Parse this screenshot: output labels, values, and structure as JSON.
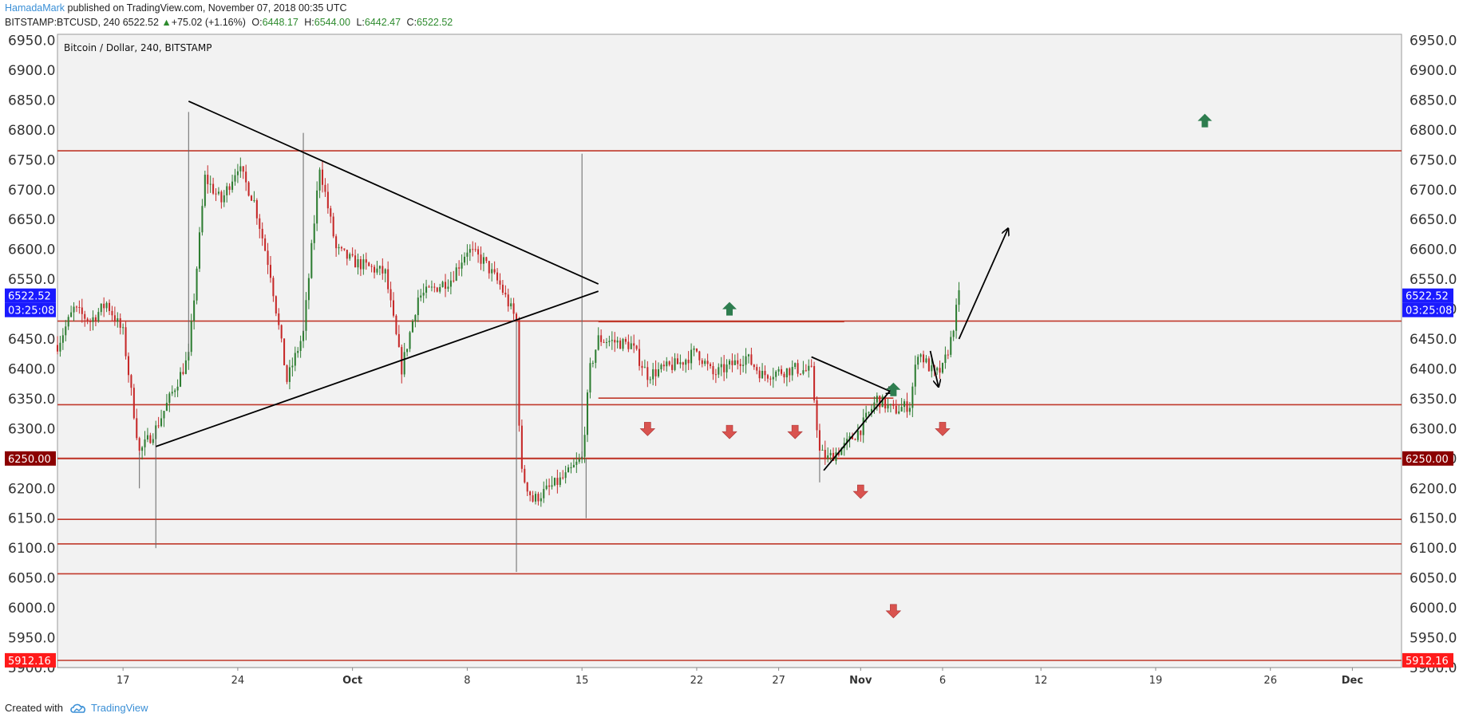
{
  "header": {
    "author": "HamadaMark",
    "published": " published on TradingView.com, November 07, 2018 00:35 UTC",
    "symbol": "BITSTAMP:BTCUSD, 240",
    "last": "6522.52",
    "change_arrow": "▲",
    "change": "+75.02 (+1.16%)",
    "o_label": "O:",
    "o_val": "6448.17",
    "h_label": "H:",
    "h_val": "6544.00",
    "l_label": "L:",
    "l_val": "6442.47",
    "c_label": "C:",
    "c_val": "6522.52"
  },
  "footer": {
    "created_with": "Created with",
    "brand": "TradingView",
    "brand_icon": "tradingview-cloud-icon"
  },
  "colors": {
    "bull": "#2e7d32",
    "bear": "#c62828",
    "level_line": "#c0392b",
    "pane_bg": "#f2f2f2",
    "blue_tag": "#1a1aff",
    "dark_red_tag": "#8b0000",
    "red_tag": "#ff1a1a",
    "up_arrow": "#2e7d4f",
    "down_arrow": "#d9534f"
  },
  "chart_data": {
    "type": "candlestick",
    "title": "Bitcoin / Dollar, 240, BITSTAMP",
    "ylim": [
      5900,
      6960
    ],
    "y_ticks": [
      "6950.0",
      "6900.0",
      "6850.0",
      "6800.0",
      "6750.0",
      "6700.0",
      "6650.0",
      "6600.0",
      "6550.0",
      "6500.0",
      "6450.0",
      "6400.0",
      "6350.0",
      "6300.0",
      "6250.0",
      "6200.0",
      "6150.0",
      "6100.0",
      "6050.0",
      "6000.0",
      "5950.0",
      "5900.0"
    ],
    "x_range": [
      "2018-09-13",
      "2018-12-04"
    ],
    "x_ticks": [
      {
        "date": "2018-09-17",
        "label": "17",
        "bold": false
      },
      {
        "date": "2018-09-24",
        "label": "24",
        "bold": false
      },
      {
        "date": "2018-10-01",
        "label": "Oct",
        "bold": true
      },
      {
        "date": "2018-10-08",
        "label": "8",
        "bold": false
      },
      {
        "date": "2018-10-15",
        "label": "15",
        "bold": false
      },
      {
        "date": "2018-10-22",
        "label": "22",
        "bold": false
      },
      {
        "date": "2018-10-27",
        "label": "27",
        "bold": false
      },
      {
        "date": "2018-11-01",
        "label": "Nov",
        "bold": true
      },
      {
        "date": "2018-11-06",
        "label": "6",
        "bold": false
      },
      {
        "date": "2018-11-12",
        "label": "12",
        "bold": false
      },
      {
        "date": "2018-11-19",
        "label": "19",
        "bold": false
      },
      {
        "date": "2018-11-26",
        "label": "26",
        "bold": false
      },
      {
        "date": "2018-12-01",
        "label": "Dec",
        "bold": true
      }
    ],
    "keypoints": [
      [
        "2018-09-13",
        6440
      ],
      [
        "2018-09-14",
        6500
      ],
      [
        "2018-09-15",
        6480
      ],
      [
        "2018-09-16",
        6510
      ],
      [
        "2018-09-17",
        6460
      ],
      [
        "2018-09-18",
        6260
      ],
      [
        "2018-09-19",
        6300
      ],
      [
        "2018-09-20",
        6360
      ],
      [
        "2018-09-21",
        6420
      ],
      [
        "2018-09-22",
        6720
      ],
      [
        "2018-09-23",
        6680
      ],
      [
        "2018-09-24",
        6740
      ],
      [
        "2018-09-25",
        6680
      ],
      [
        "2018-09-26",
        6560
      ],
      [
        "2018-09-27",
        6380
      ],
      [
        "2018-09-28",
        6460
      ],
      [
        "2018-09-29",
        6740
      ],
      [
        "2018-09-30",
        6600
      ],
      [
        "2018-10-01",
        6580
      ],
      [
        "2018-10-03",
        6560
      ],
      [
        "2018-10-04",
        6400
      ],
      [
        "2018-10-05",
        6520
      ],
      [
        "2018-10-07",
        6550
      ],
      [
        "2018-10-08",
        6600
      ],
      [
        "2018-10-09",
        6580
      ],
      [
        "2018-10-10",
        6540
      ],
      [
        "2018-10-11",
        6480
      ],
      [
        "2018-10-11T06:00",
        6230
      ],
      [
        "2018-10-12",
        6180
      ],
      [
        "2018-10-13",
        6200
      ],
      [
        "2018-10-14",
        6220
      ],
      [
        "2018-10-15",
        6250
      ],
      [
        "2018-10-15T12:00",
        6400
      ],
      [
        "2018-10-16",
        6450
      ],
      [
        "2018-10-18",
        6440
      ],
      [
        "2018-10-19",
        6390
      ],
      [
        "2018-10-21",
        6410
      ],
      [
        "2018-10-22",
        6430
      ],
      [
        "2018-10-23",
        6390
      ],
      [
        "2018-10-25",
        6420
      ],
      [
        "2018-10-26",
        6390
      ],
      [
        "2018-10-28",
        6400
      ],
      [
        "2018-10-29",
        6395
      ],
      [
        "2018-10-29T12:00",
        6260
      ],
      [
        "2018-10-30",
        6250
      ],
      [
        "2018-10-31",
        6270
      ],
      [
        "2018-11-01",
        6300
      ],
      [
        "2018-11-02",
        6350
      ],
      [
        "2018-11-03",
        6330
      ],
      [
        "2018-11-04",
        6340
      ],
      [
        "2018-11-04T12:00",
        6430
      ],
      [
        "2018-11-05",
        6410
      ],
      [
        "2018-11-05T12:00",
        6390
      ],
      [
        "2018-11-06",
        6400
      ],
      [
        "2018-11-06T12:00",
        6448
      ],
      [
        "2018-11-07",
        6522.52
      ]
    ],
    "spikes": [
      {
        "date": "2018-09-18",
        "low": 6200
      },
      {
        "date": "2018-09-19",
        "low": 6100
      },
      {
        "date": "2018-09-21",
        "high": 6830
      },
      {
        "date": "2018-09-28",
        "high": 6795
      },
      {
        "date": "2018-10-11",
        "low": 6060
      },
      {
        "date": "2018-10-15",
        "high": 6760
      },
      {
        "date": "2018-10-15T06:00",
        "low": 6150
      },
      {
        "date": "2018-10-29T12:00",
        "low": 6210
      }
    ],
    "horizontal_levels": [
      {
        "price": 6765,
        "width": 1.6
      },
      {
        "price": 6480,
        "width": 1.6
      },
      {
        "price": 6340,
        "width": 1.6
      },
      {
        "price": 6250,
        "width": 2.2
      },
      {
        "price": 6148,
        "width": 1.6
      },
      {
        "price": 6107,
        "width": 1.6
      },
      {
        "price": 6057,
        "width": 1.6
      },
      {
        "price": 5912,
        "width": 1.6
      }
    ],
    "segments": [
      {
        "from": [
          "2018-10-16",
          6479
        ],
        "to": [
          "2018-10-31",
          6479
        ],
        "color": "#c0392b"
      },
      {
        "from": [
          "2018-10-16",
          6351
        ],
        "to": [
          "2018-11-03",
          6351
        ],
        "color": "#c0392b"
      }
    ],
    "trendlines": [
      {
        "from": [
          "2018-09-21",
          6848
        ],
        "to": [
          "2018-10-16",
          6542
        ],
        "arrow": false
      },
      {
        "from": [
          "2018-09-19",
          6270
        ],
        "to": [
          "2018-10-16",
          6530
        ],
        "arrow": false
      },
      {
        "from": [
          "2018-10-29",
          6420
        ],
        "to": [
          "2018-11-03",
          6360
        ],
        "arrow": true
      },
      {
        "from": [
          "2018-10-29T18:00",
          6230
        ],
        "to": [
          "2018-11-03",
          6370
        ],
        "arrow": true
      },
      {
        "from": [
          "2018-11-05T06:00",
          6430
        ],
        "to": [
          "2018-11-05T18:00",
          6370
        ],
        "arrow": true
      },
      {
        "from": [
          "2018-11-07",
          6450
        ],
        "to": [
          "2018-11-10",
          6635
        ],
        "arrow": true
      }
    ],
    "markers": [
      {
        "date": "2018-10-24",
        "price": 6500,
        "dir": "up"
      },
      {
        "date": "2018-11-03",
        "price": 6365,
        "dir": "up"
      },
      {
        "date": "2018-11-22",
        "price": 6815,
        "dir": "up"
      },
      {
        "date": "2018-10-19",
        "price": 6300,
        "dir": "down"
      },
      {
        "date": "2018-10-24",
        "price": 6295,
        "dir": "down"
      },
      {
        "date": "2018-10-28",
        "price": 6295,
        "dir": "down"
      },
      {
        "date": "2018-11-06",
        "price": 6300,
        "dir": "down"
      },
      {
        "date": "2018-11-01",
        "price": 6195,
        "dir": "down"
      },
      {
        "date": "2018-11-03",
        "price": 5995,
        "dir": "down"
      }
    ],
    "price_tags": [
      {
        "price": 6522.52,
        "text": "6522.52",
        "sub": "03:25:08",
        "color": "#1a1aff"
      },
      {
        "price": 6250,
        "text": "6250.00",
        "sub": "",
        "color": "#8b0000"
      },
      {
        "price": 5912.16,
        "text": "5912.16",
        "sub": "",
        "color": "#ff1a1a"
      }
    ]
  }
}
